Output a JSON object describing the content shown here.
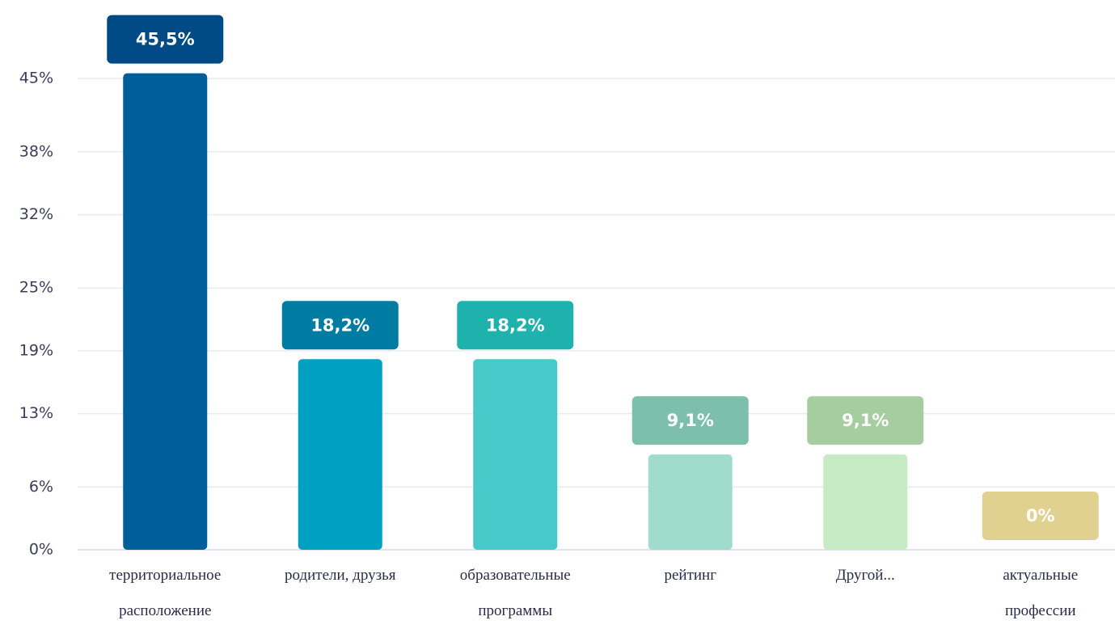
{
  "chart_data": {
    "type": "bar",
    "categories": [
      "территориальное расположение",
      "родители, друзья",
      "образовательные программы",
      "рейтинг",
      "Другой...",
      "актуальные профессии"
    ],
    "values": [
      45.5,
      18.2,
      18.2,
      9.1,
      9.1,
      0
    ],
    "value_labels": [
      "45,5%",
      "18,2%",
      "18,2%",
      "9,1%",
      "9,1%",
      "0%"
    ],
    "colors": [
      "#005f99",
      "#00a0c3",
      "#48c9c9",
      "#9fdccb",
      "#c6ebc4",
      "#e6d794"
    ],
    "label_colors": [
      "#004a85",
      "#007ba1",
      "#1fb1ab",
      "#7cbfaa",
      "#a6cda0",
      "#e0d190"
    ],
    "ylim": [
      0,
      52.5
    ],
    "yticks": [
      {
        "value": 0,
        "label": "0%"
      },
      {
        "value": 6,
        "label": "6%"
      },
      {
        "value": 13,
        "label": "13%"
      },
      {
        "value": 19,
        "label": "19%"
      },
      {
        "value": 25,
        "label": "25%"
      },
      {
        "value": 32,
        "label": "32%"
      },
      {
        "value": 38,
        "label": "38%"
      },
      {
        "value": 45,
        "label": "45%"
      }
    ],
    "grid": true
  }
}
